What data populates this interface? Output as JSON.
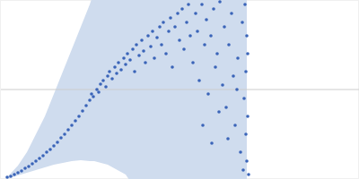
{
  "chart_data": {
    "type": "scatter",
    "xlim": [
      0,
      400
    ],
    "ylim": [
      0,
      200
    ],
    "yticks": [
      100
    ],
    "grid": true,
    "tick_labels": false,
    "color": "#3a64b8",
    "marker": "circle",
    "x": [
      8,
      12,
      16,
      20,
      24,
      28,
      32,
      36,
      40,
      44,
      48,
      52,
      56,
      60,
      64,
      68,
      72,
      76,
      80,
      84,
      88,
      92,
      96,
      100,
      102,
      104,
      108,
      110,
      112,
      115,
      118,
      120,
      122,
      125,
      128,
      130,
      132,
      135,
      138,
      140,
      142,
      145,
      148,
      150,
      152,
      155,
      158,
      160,
      162,
      165,
      168,
      170,
      172,
      175,
      178,
      180,
      182,
      185,
      188,
      190,
      192,
      195,
      198,
      200,
      203,
      205,
      208,
      210,
      212,
      215,
      218,
      220,
      222,
      225,
      226,
      228,
      230,
      232,
      235,
      236,
      238,
      240,
      242,
      244,
      245,
      248,
      250,
      252,
      254,
      255,
      258,
      260,
      262,
      264,
      265,
      268,
      270,
      271,
      272,
      273,
      274,
      274,
      275,
      275,
      276,
      276,
      277
    ],
    "values": [
      2,
      3,
      5,
      7,
      9,
      12,
      14,
      17,
      20,
      23,
      26,
      30,
      33,
      37,
      41,
      46,
      50,
      55,
      60,
      65,
      70,
      76,
      82,
      88,
      95,
      92,
      100,
      97,
      106,
      110,
      103,
      115,
      120,
      112,
      125,
      118,
      130,
      122,
      135,
      128,
      140,
      133,
      145,
      120,
      150,
      138,
      155,
      143,
      130,
      160,
      148,
      165,
      135,
      158,
      170,
      150,
      175,
      140,
      165,
      180,
      125,
      170,
      185,
      155,
      190,
      145,
      175,
      195,
      160,
      130,
      185,
      165,
      110,
      195,
      60,
      150,
      178,
      95,
      160,
      40,
      190,
      125,
      140,
      75,
      198,
      105,
      170,
      80,
      45,
      150,
      185,
      115,
      60,
      100,
      135,
      30,
      175,
      10,
      90,
      195,
      50,
      120,
      20,
      160,
      70,
      140,
      5
    ],
    "band": {
      "color": "#cfdcee",
      "x": [
        8,
        20,
        30,
        40,
        50,
        60,
        70,
        80,
        90,
        100,
        105,
        120,
        140,
        150,
        175,
        200,
        225,
        250,
        275
      ],
      "upper": [
        2,
        15,
        30,
        50,
        70,
        95,
        120,
        145,
        170,
        195,
        210,
        215,
        220,
        220,
        220,
        220,
        220,
        220,
        220
      ],
      "lower": [
        0,
        4,
        7,
        10,
        13,
        16,
        18,
        20,
        21,
        20,
        20,
        16,
        5,
        -10,
        -25,
        -40,
        -50,
        -55,
        -60
      ]
    }
  }
}
